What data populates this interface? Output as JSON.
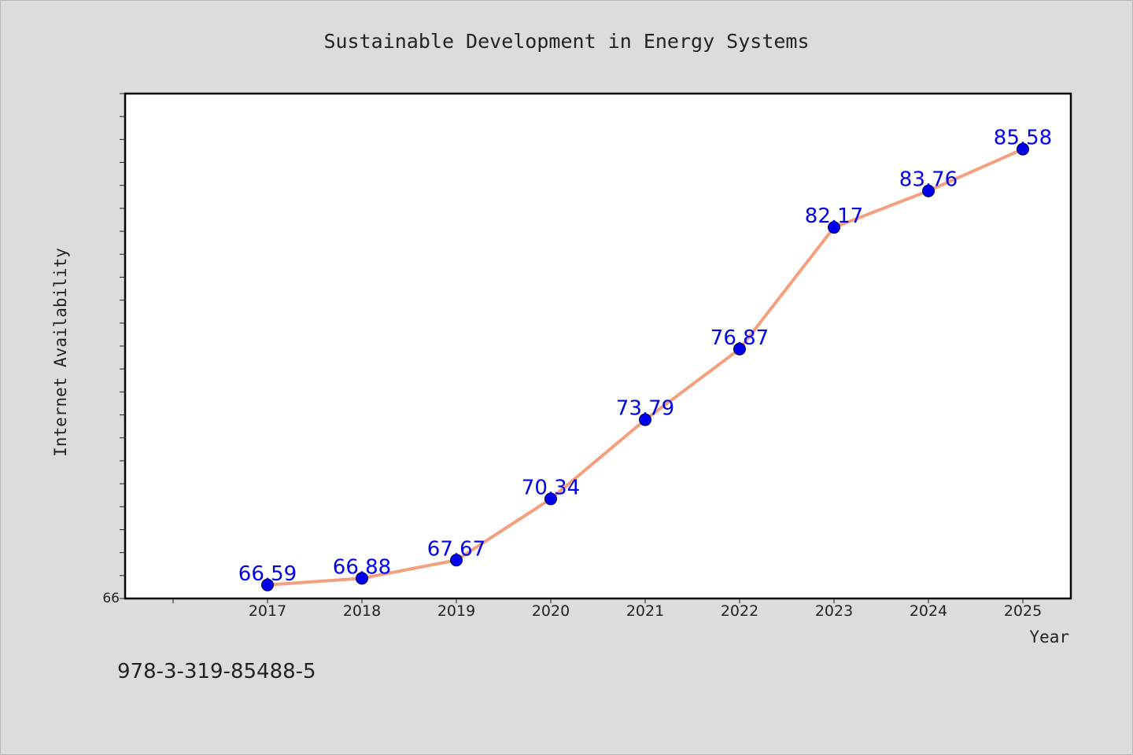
{
  "chart_data": {
    "type": "line",
    "title": "Sustainable Development in Energy Systems",
    "xlabel": "Year",
    "ylabel": "Internet Availability",
    "categories": [
      "2017",
      "2018",
      "2019",
      "2020",
      "2021",
      "2022",
      "2023",
      "2024",
      "2025"
    ],
    "series": [
      {
        "values": [
          66.59,
          66.88,
          67.67,
          70.34,
          73.79,
          76.87,
          82.17,
          83.76,
          85.58
        ]
      }
    ],
    "y_tick_labels": [
      "66"
    ],
    "ylim": [
      66,
      88
    ],
    "grid": false,
    "legend": "none",
    "line_color": "#f4a07e",
    "marker_color": "#0000ee",
    "label_color": "#0000ee"
  },
  "footer": {
    "isbn": "978-3-319-85488-5"
  }
}
